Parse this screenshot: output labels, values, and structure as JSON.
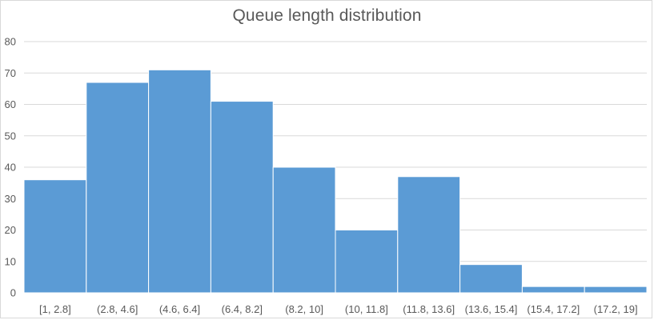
{
  "chart_data": {
    "type": "bar",
    "title": "Queue length distribution",
    "xlabel": "",
    "ylabel": "",
    "categories": [
      "[1, 2.8]",
      "(2.8, 4.6]",
      "(4.6, 6.4]",
      "(6.4, 8.2]",
      "(8.2, 10]",
      "(10, 11.8]",
      "(11.8, 13.6]",
      "(13.6, 15.4]",
      "(15.4, 17.2]",
      "(17.2, 19]"
    ],
    "values": [
      36,
      67,
      71,
      61,
      40,
      20,
      37,
      9,
      2,
      2
    ],
    "ylim": [
      0,
      80
    ],
    "yticks": [
      0,
      10,
      20,
      30,
      40,
      50,
      60,
      70,
      80
    ],
    "grid": true,
    "legend": "none",
    "colors": {
      "bar": "#5b9bd5",
      "bar_edge": "#ffffff",
      "grid": "#d9d9d9",
      "text": "#595959"
    }
  }
}
